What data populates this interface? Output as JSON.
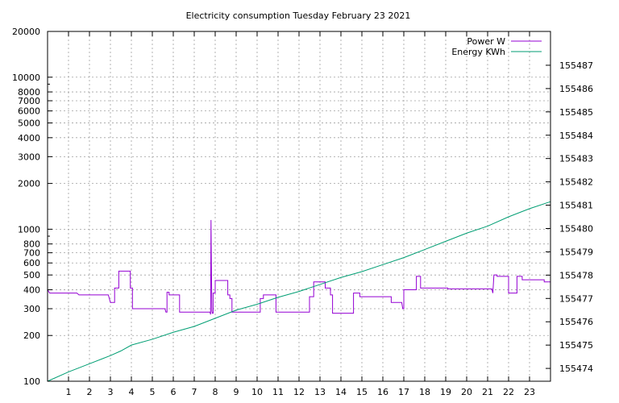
{
  "chart_data": {
    "type": "line",
    "title": "Electricity consumption Tuesday February 23 2021",
    "xlabel": "",
    "ylabel": "",
    "y2label": "",
    "grid": true,
    "legend_position": "top-right",
    "x_range": [
      0,
      24
    ],
    "x_ticks": [
      1,
      2,
      3,
      4,
      5,
      6,
      7,
      8,
      9,
      10,
      11,
      12,
      13,
      14,
      15,
      16,
      17,
      18,
      19,
      20,
      21,
      22,
      23
    ],
    "y_scale": "log",
    "y_range": [
      100,
      20000
    ],
    "y_ticks": [
      100,
      200,
      300,
      400,
      500,
      600,
      700,
      800,
      1000,
      2000,
      3000,
      4000,
      5000,
      6000,
      7000,
      8000,
      10000,
      20000
    ],
    "y2_range": [
      155473.45,
      155488.45
    ],
    "y2_ticks": [
      155474,
      155475,
      155476,
      155477,
      155478,
      155479,
      155480,
      155481,
      155482,
      155483,
      155484,
      155485,
      155486,
      155487
    ],
    "series": [
      {
        "name": "Power W",
        "color": "#9400d3",
        "axis": "y",
        "step": true,
        "points": [
          [
            0,
            400
          ],
          [
            0.1,
            380
          ],
          [
            1.4,
            380
          ],
          [
            1.5,
            370
          ],
          [
            2.9,
            370
          ],
          [
            3.0,
            330
          ],
          [
            3.2,
            330
          ],
          [
            3.2,
            410
          ],
          [
            3.4,
            410
          ],
          [
            3.4,
            530
          ],
          [
            3.95,
            530
          ],
          [
            3.95,
            410
          ],
          [
            4.05,
            410
          ],
          [
            4.05,
            300
          ],
          [
            5.6,
            300
          ],
          [
            5.65,
            285
          ],
          [
            5.7,
            285
          ],
          [
            5.7,
            385
          ],
          [
            5.8,
            385
          ],
          [
            5.8,
            370
          ],
          [
            6.3,
            370
          ],
          [
            6.3,
            285
          ],
          [
            7.75,
            285
          ],
          [
            7.78,
            275
          ],
          [
            7.8,
            1150
          ],
          [
            7.82,
            560
          ],
          [
            7.84,
            290
          ],
          [
            7.86,
            280
          ],
          [
            7.9,
            280
          ],
          [
            7.9,
            380
          ],
          [
            8.0,
            380
          ],
          [
            8.0,
            460
          ],
          [
            8.6,
            460
          ],
          [
            8.6,
            370
          ],
          [
            8.7,
            370
          ],
          [
            8.7,
            350
          ],
          [
            8.8,
            350
          ],
          [
            8.8,
            285
          ],
          [
            10.15,
            285
          ],
          [
            10.15,
            350
          ],
          [
            10.3,
            350
          ],
          [
            10.3,
            370
          ],
          [
            10.9,
            370
          ],
          [
            10.9,
            285
          ],
          [
            12.5,
            285
          ],
          [
            12.5,
            360
          ],
          [
            12.7,
            360
          ],
          [
            12.7,
            450
          ],
          [
            13.25,
            450
          ],
          [
            13.25,
            410
          ],
          [
            13.5,
            410
          ],
          [
            13.5,
            370
          ],
          [
            13.6,
            370
          ],
          [
            13.6,
            280
          ],
          [
            14.6,
            280
          ],
          [
            14.6,
            380
          ],
          [
            14.9,
            380
          ],
          [
            14.9,
            360
          ],
          [
            16.4,
            360
          ],
          [
            16.4,
            330
          ],
          [
            16.9,
            330
          ],
          [
            16.95,
            300
          ],
          [
            17.0,
            300
          ],
          [
            17.0,
            400
          ],
          [
            17.6,
            400
          ],
          [
            17.6,
            490
          ],
          [
            17.8,
            490
          ],
          [
            17.8,
            410
          ],
          [
            19.1,
            410
          ],
          [
            19.1,
            405
          ],
          [
            21.2,
            405
          ],
          [
            21.25,
            380
          ],
          [
            21.3,
            500
          ],
          [
            21.45,
            500
          ],
          [
            21.45,
            490
          ],
          [
            22.0,
            490
          ],
          [
            22.0,
            380
          ],
          [
            22.4,
            380
          ],
          [
            22.4,
            490
          ],
          [
            22.65,
            490
          ],
          [
            22.65,
            465
          ],
          [
            23.7,
            465
          ],
          [
            23.7,
            450
          ],
          [
            24.0,
            450
          ]
        ]
      },
      {
        "name": "Energy KWh",
        "color": "#009e73",
        "axis": "y2",
        "step": false,
        "points": [
          [
            0,
            155473.45
          ],
          [
            1,
            155473.85
          ],
          [
            2,
            155474.2
          ],
          [
            3,
            155474.55
          ],
          [
            3.5,
            155474.75
          ],
          [
            4,
            155475.0
          ],
          [
            5,
            155475.25
          ],
          [
            6,
            155475.55
          ],
          [
            7,
            155475.8
          ],
          [
            8,
            155476.15
          ],
          [
            9,
            155476.5
          ],
          [
            10,
            155476.75
          ],
          [
            11,
            155477.05
          ],
          [
            12,
            155477.3
          ],
          [
            13,
            155477.6
          ],
          [
            14,
            155477.9
          ],
          [
            15,
            155478.15
          ],
          [
            16,
            155478.45
          ],
          [
            17,
            155478.75
          ],
          [
            18,
            155479.1
          ],
          [
            19,
            155479.45
          ],
          [
            20,
            155479.8
          ],
          [
            21,
            155480.1
          ],
          [
            22,
            155480.5
          ],
          [
            23,
            155480.85
          ],
          [
            24,
            155481.15
          ]
        ]
      }
    ]
  }
}
